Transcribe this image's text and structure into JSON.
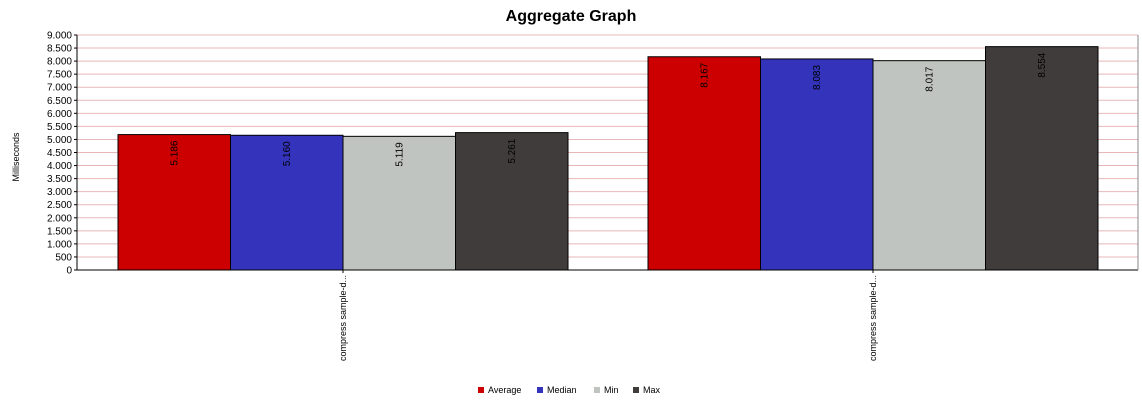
{
  "chart_data": {
    "type": "bar",
    "title": "Aggregate Graph",
    "xlabel": "",
    "ylabel": "Milliseconds",
    "categories": [
      "compress sample-d...",
      "compress sample-d..."
    ],
    "series": [
      {
        "name": "Average",
        "color": "#cc0000",
        "values": [
          5186,
          8167
        ],
        "labels": [
          "5.186",
          "8.167"
        ]
      },
      {
        "name": "Median",
        "color": "#3333bb",
        "values": [
          5160,
          8083
        ],
        "labels": [
          "5.160",
          "8.083"
        ]
      },
      {
        "name": "Min",
        "color": "#c0c4c0",
        "values": [
          5119,
          8017
        ],
        "labels": [
          "5.119",
          "8.017"
        ]
      },
      {
        "name": "Max",
        "color": "#403c3c",
        "values": [
          5261,
          8554
        ],
        "labels": [
          "5.261",
          "8.554"
        ]
      }
    ],
    "ylim": [
      0,
      9000
    ],
    "yticks": [
      0,
      500,
      1000,
      1500,
      2000,
      2500,
      3000,
      3500,
      4000,
      4500,
      5000,
      5500,
      6000,
      6500,
      7000,
      7500,
      8000,
      8500,
      9000
    ],
    "ytick_labels": [
      "0",
      "500",
      "1.000",
      "1.500",
      "2.000",
      "2.500",
      "3.000",
      "3.500",
      "4.000",
      "4.500",
      "5.000",
      "5.500",
      "6.000",
      "6.500",
      "7.000",
      "7.500",
      "8.000",
      "8.500",
      "9.000"
    ],
    "grid": true,
    "grid_color": "#e8b8b8",
    "legend_position": "bottom-center"
  }
}
